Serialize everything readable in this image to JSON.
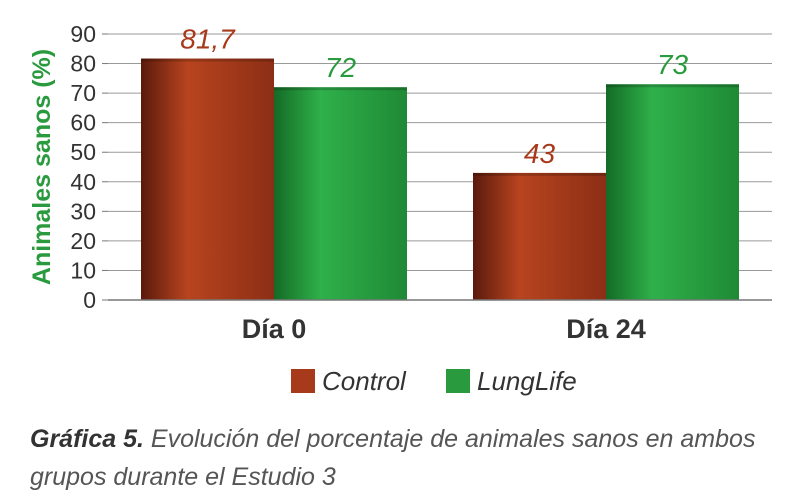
{
  "chart_data": {
    "type": "bar",
    "categories": [
      "Día 0",
      "Día 24"
    ],
    "series": [
      {
        "name": "Control",
        "values": [
          81.7,
          43
        ],
        "labels": [
          "81,7",
          "43"
        ],
        "color": "#a83a1c"
      },
      {
        "name": "LungLife",
        "values": [
          72,
          73
        ],
        "labels": [
          "72",
          "73"
        ],
        "color": "#2a9a3e"
      }
    ],
    "ylabel": "Animales sanos (%)",
    "ylim": [
      0,
      90
    ],
    "yticks": [
      0,
      10,
      20,
      30,
      40,
      50,
      60,
      70,
      80,
      90
    ],
    "grid": true,
    "legend_position": "bottom",
    "ylabel_color": "#2a9a3e"
  },
  "caption": {
    "bold": "Gráfica 5.",
    "text": " Evolución del porcentaje de animales sanos en ambos grupos durante el Estudio 3"
  }
}
